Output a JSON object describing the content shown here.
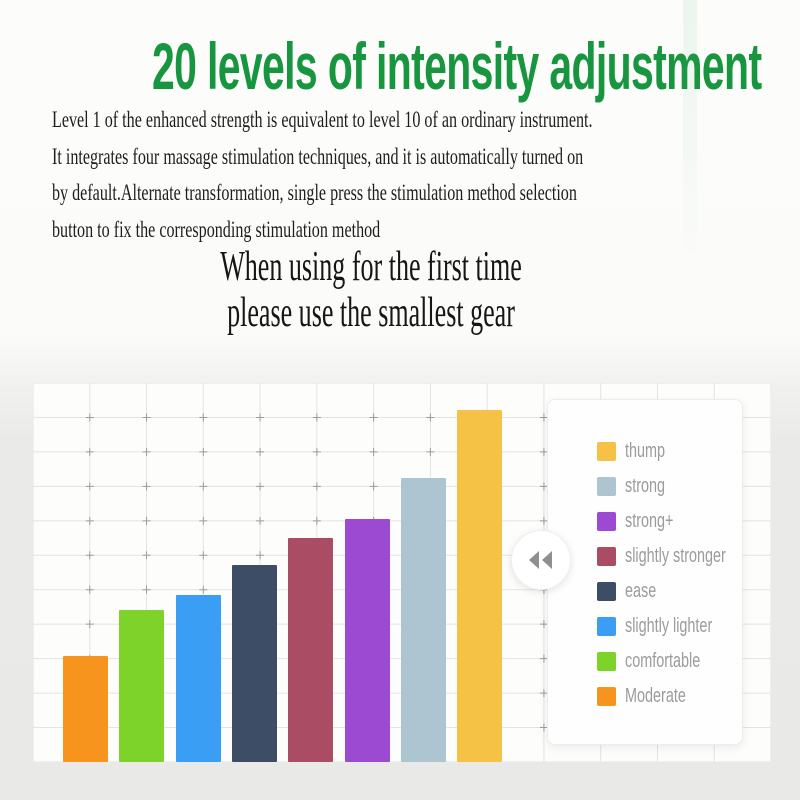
{
  "header": {
    "title": "20 levels of intensity adjustment",
    "title_color": "#17953f",
    "intro_lines": [
      "Level 1 of the enhanced strength is equivalent to level 10 of an ordinary instrument.",
      "It integrates four massage stimulation techniques, and it is automatically turned on",
      "by default.Alternate transformation, single press the stimulation method selection",
      "button to fix the corresponding stimulation method"
    ]
  },
  "notice": {
    "line1": "When using for the first time",
    "line2": "please use the smallest gear"
  },
  "chart_data": {
    "type": "bar",
    "title": "",
    "xlabel": "",
    "ylabel": "",
    "axis_tick_labels": "none",
    "grid": true,
    "categories": [
      "Moderate",
      "comfortable",
      "slightly lighter",
      "ease",
      "slightly stronger",
      "strong+",
      "strong",
      "thump"
    ],
    "values": [
      28,
      40,
      44,
      52,
      59,
      64,
      75,
      93
    ],
    "value_unit": "percent of plot height (no numeric axis shown)",
    "colors": [
      "#f7941e",
      "#7ed32a",
      "#3b9ef5",
      "#3c4d65",
      "#a94c64",
      "#9c4ad1",
      "#adc4d1",
      "#f6c245"
    ],
    "legend": {
      "position": "right-overlay-panel",
      "items_top_to_bottom": [
        "thump",
        "strong",
        "strong+",
        "slightly stronger",
        "ease",
        "slightly lighter",
        "comfortable",
        "Moderate"
      ]
    },
    "style": {
      "gridline_color": "#e3e3e1",
      "cross_mark_color": "#8f8f8f",
      "plot_background": "#fdfdfc",
      "legend_label_color": "#9b9b9b"
    }
  },
  "controls": {
    "legend_collapse_icon": "double-left-chevron"
  }
}
